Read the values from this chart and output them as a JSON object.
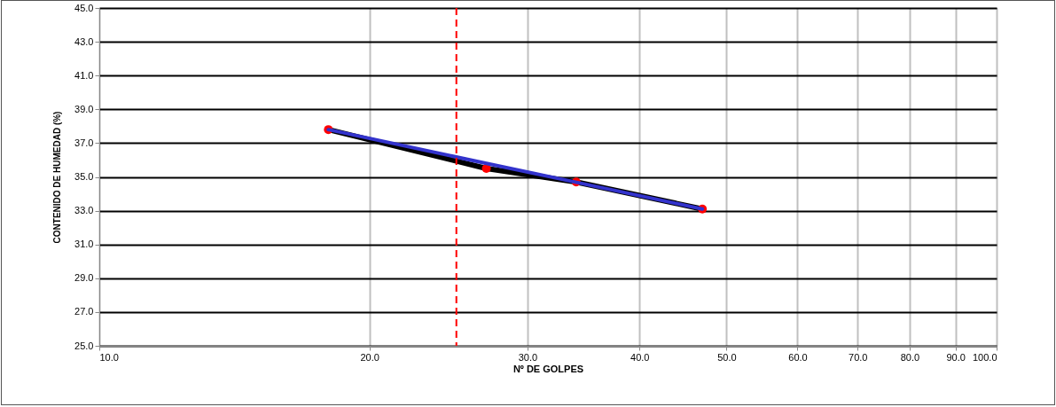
{
  "chart_data": {
    "type": "line",
    "xlabel": "Nº DE GOLPES",
    "ylabel": "CONTENIDO DE HUMEDAD (%)",
    "log": "x",
    "grid": true,
    "marker": "none",
    "xlim": [
      10,
      100
    ],
    "ylim": [
      25,
      45
    ],
    "xticks": [
      {
        "value": 10,
        "label": "10.0"
      },
      {
        "value": 20,
        "label": "20.0"
      },
      {
        "value": 30,
        "label": "30.0"
      },
      {
        "value": 40,
        "label": "40.0"
      },
      {
        "value": 50,
        "label": "50.0"
      },
      {
        "value": 60,
        "label": "60.0"
      },
      {
        "value": 70,
        "label": "70.0"
      },
      {
        "value": 80,
        "label": "80.0"
      },
      {
        "value": 90,
        "label": "90.0"
      },
      {
        "value": 100,
        "label": "100.0"
      }
    ],
    "yticks": [
      {
        "value": 25,
        "label": "25.0"
      },
      {
        "value": 27,
        "label": "27.0"
      },
      {
        "value": 29,
        "label": "29.0"
      },
      {
        "value": 31,
        "label": "31.0"
      },
      {
        "value": 33,
        "label": "33.0"
      },
      {
        "value": 35,
        "label": "35.0"
      },
      {
        "value": 37,
        "label": "37.0"
      },
      {
        "value": 39,
        "label": "39.0"
      },
      {
        "value": 41,
        "label": "41.0"
      },
      {
        "value": 43,
        "label": "43.0"
      },
      {
        "value": 45,
        "label": "45.0"
      }
    ],
    "series": [
      {
        "type": "line",
        "color": "#000000",
        "x": [
          18,
          27,
          34,
          47
        ],
        "values": [
          37.8,
          35.5,
          34.7,
          33.1
        ]
      },
      {
        "type": "scatter",
        "marker": "circle",
        "color": "#ff0000",
        "x": [
          18,
          27,
          34,
          47
        ],
        "values": [
          37.8,
          35.5,
          34.7,
          33.1
        ]
      },
      {
        "type": "line",
        "color": "#3333cc",
        "x": [
          18,
          27,
          32.5,
          47
        ],
        "values": [
          37.8,
          35.8,
          34.9,
          33.1
        ]
      }
    ],
    "ref_lines": [
      {
        "axis": "x",
        "value": 25,
        "color": "#ff0000",
        "line_style": "dashed"
      }
    ]
  }
}
